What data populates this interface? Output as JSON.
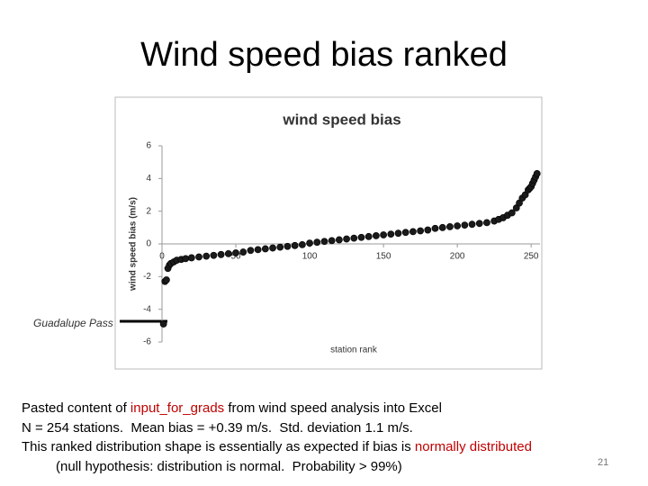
{
  "slide": {
    "title": "Wind speed bias ranked",
    "notes": [
      [
        {
          "text": "Pasted content of "
        },
        {
          "text": "input_for_grads",
          "color": "#c00000"
        },
        {
          "text": " from wind speed analysis into Excel"
        }
      ],
      [
        {
          "text": "N = 254 stations.  Mean bias = +0.39 m/s.  Std. deviation 1.1 m/s."
        }
      ],
      [
        {
          "text": "This ranked distribution shape is essentially as expected if bias is "
        },
        {
          "text": "normally distributed",
          "color": "#c00000"
        }
      ],
      [
        {
          "text": "(null hypothesis: distribution is normal.  Probability > 99%)"
        }
      ]
    ],
    "page_number": "21"
  },
  "chart_data": {
    "type": "scatter",
    "title": "wind speed bias",
    "x_label": "station rank",
    "y_label": "wind speed bias (m/s)",
    "annotation": "Guadalupe Pass",
    "color": "#1a1a1a",
    "x": [
      1,
      2,
      3,
      4,
      5,
      6,
      8,
      10,
      13,
      16,
      20,
      25,
      30,
      35,
      40,
      45,
      50,
      55,
      60,
      65,
      70,
      75,
      80,
      85,
      90,
      95,
      100,
      105,
      110,
      115,
      120,
      125,
      130,
      135,
      140,
      145,
      150,
      155,
      160,
      165,
      170,
      175,
      180,
      185,
      190,
      195,
      200,
      205,
      210,
      215,
      220,
      225,
      228,
      231,
      234,
      237,
      240,
      242,
      244,
      246,
      248,
      249,
      250,
      251,
      252,
      253,
      254
    ],
    "values": [
      -4.9,
      -2.3,
      -2.2,
      -1.5,
      -1.3,
      -1.2,
      -1.1,
      -1.0,
      -0.95,
      -0.9,
      -0.85,
      -0.8,
      -0.75,
      -0.7,
      -0.65,
      -0.6,
      -0.55,
      -0.5,
      -0.4,
      -0.35,
      -0.3,
      -0.25,
      -0.2,
      -0.15,
      -0.1,
      -0.05,
      0.05,
      0.1,
      0.15,
      0.2,
      0.25,
      0.3,
      0.35,
      0.4,
      0.45,
      0.5,
      0.55,
      0.6,
      0.65,
      0.7,
      0.75,
      0.8,
      0.85,
      0.95,
      1.0,
      1.05,
      1.1,
      1.15,
      1.2,
      1.25,
      1.3,
      1.4,
      1.5,
      1.6,
      1.75,
      1.9,
      2.2,
      2.5,
      2.8,
      3.0,
      3.3,
      3.4,
      3.5,
      3.7,
      3.9,
      4.1,
      4.3
    ],
    "xlim": [
      0,
      256
    ],
    "ylim": [
      -6,
      6
    ],
    "xticks": [
      0,
      50,
      100,
      150,
      200,
      250
    ],
    "yticks": [
      -6,
      -4,
      -2,
      0,
      2,
      4,
      6
    ]
  }
}
